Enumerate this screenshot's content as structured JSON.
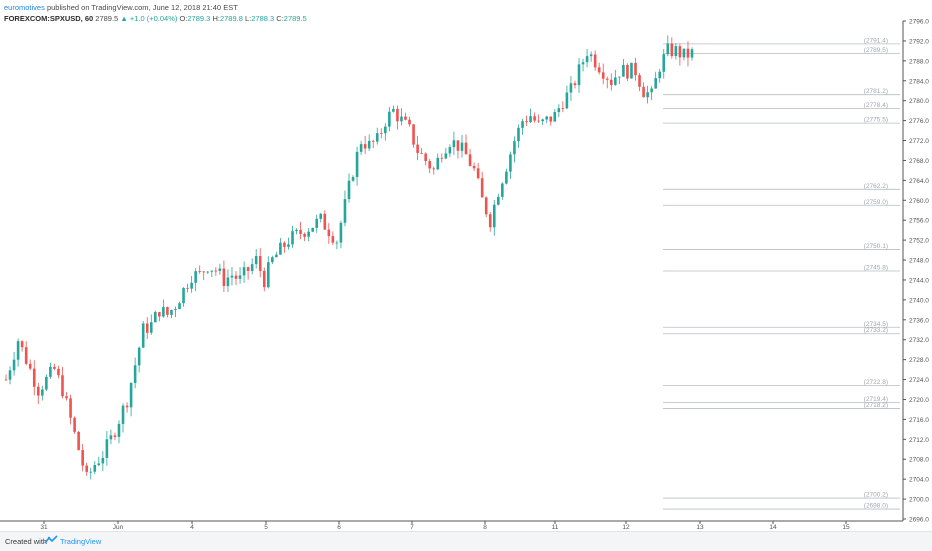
{
  "header": {
    "author": "euromotives",
    "published": "published on TradingView.com, June 12, 2018 21:40 EST",
    "symbol": "FOREXCOM:SPXUSD, 60",
    "last": "2789.5",
    "change": "▲ +1.0 (+0.04%)",
    "o_label": "O:",
    "o_value": "2789.3",
    "h_label": "H:",
    "h_value": "2789.8",
    "l_label": "L:",
    "l_value": "2788.3",
    "c_label": "C:",
    "c_value": "2789.5"
  },
  "footer": {
    "created": "Created with",
    "brand": "TradingView"
  },
  "colors": {
    "up": "#26a69a",
    "down": "#ef5350",
    "grid": "#ffffff",
    "level_line": "#b7bcc4",
    "axis_text": "#555555"
  },
  "chart_data": {
    "type": "candlestick",
    "title": "FOREXCOM:SPXUSD, 60",
    "ylim": [
      2696.0,
      2796.0
    ],
    "y_ticks": [
      "2796.0",
      "2792.0",
      "2788.0",
      "2784.0",
      "2780.0",
      "2776.0",
      "2772.0",
      "2768.0",
      "2764.0",
      "2760.0",
      "2756.0",
      "2752.0",
      "2748.0",
      "2744.0",
      "2740.0",
      "2736.0",
      "2732.0",
      "2728.0",
      "2724.0",
      "2720.0",
      "2716.0",
      "2712.0",
      "2708.0",
      "2704.0",
      "2700.0",
      "2696.0"
    ],
    "x_ticks": [
      "31",
      "Jun",
      "4",
      "5",
      "6",
      "7",
      "8",
      "11",
      "12",
      "13",
      "14",
      "15"
    ],
    "levels": [
      {
        "label": "2791.4",
        "value": 2791.4
      },
      {
        "label": "2789.5",
        "value": 2789.5
      },
      {
        "label": "2781.2",
        "value": 2781.2
      },
      {
        "label": "2778.4",
        "value": 2778.4
      },
      {
        "label": "2775.5",
        "value": 2775.5
      },
      {
        "label": "2762.2",
        "value": 2762.2
      },
      {
        "label": "2759.0",
        "value": 2759.0
      },
      {
        "label": "2750.1",
        "value": 2750.1
      },
      {
        "label": "2745.8",
        "value": 2745.8
      },
      {
        "label": "2734.5",
        "value": 2734.5
      },
      {
        "label": "2733.2",
        "value": 2733.2
      },
      {
        "label": "2722.8",
        "value": 2722.8
      },
      {
        "label": "2719.4",
        "value": 2719.4
      },
      {
        "label": "2718.2",
        "value": 2718.2
      },
      {
        "label": "2700.2",
        "value": 2700.2
      },
      {
        "label": "2698.0",
        "value": 2698.0
      }
    ],
    "close_path": [
      [
        0,
        2724
      ],
      [
        3,
        2732
      ],
      [
        6,
        2726
      ],
      [
        8,
        2722
      ],
      [
        10,
        2724
      ],
      [
        12,
        2726
      ],
      [
        14,
        2722
      ],
      [
        16,
        2716
      ],
      [
        18,
        2710
      ],
      [
        20,
        2704
      ],
      [
        22,
        2707
      ],
      [
        24,
        2709
      ],
      [
        26,
        2712
      ],
      [
        28,
        2716
      ],
      [
        30,
        2720
      ],
      [
        32,
        2727
      ],
      [
        34,
        2734
      ],
      [
        36,
        2735
      ],
      [
        38,
        2738
      ],
      [
        40,
        2737
      ],
      [
        42,
        2739
      ],
      [
        44,
        2742
      ],
      [
        46,
        2745
      ],
      [
        48,
        2745
      ],
      [
        50,
        2747
      ],
      [
        52,
        2746
      ],
      [
        54,
        2744
      ],
      [
        56,
        2745
      ],
      [
        58,
        2744
      ],
      [
        60,
        2746
      ],
      [
        62,
        2748
      ],
      [
        64,
        2744
      ],
      [
        66,
        2748
      ],
      [
        68,
        2750
      ],
      [
        70,
        2752
      ],
      [
        72,
        2753
      ],
      [
        74,
        2754
      ],
      [
        76,
        2755
      ],
      [
        78,
        2756
      ],
      [
        80,
        2754
      ],
      [
        82,
        2752
      ],
      [
        84,
        2759
      ],
      [
        86,
        2766
      ],
      [
        88,
        2772
      ],
      [
        90,
        2771
      ],
      [
        92,
        2772
      ],
      [
        94,
        2776
      ],
      [
        96,
        2778
      ],
      [
        98,
        2776
      ],
      [
        100,
        2774
      ],
      [
        102,
        2770
      ],
      [
        104,
        2768
      ],
      [
        106,
        2766
      ],
      [
        108,
        2770
      ],
      [
        110,
        2772
      ],
      [
        112,
        2771
      ],
      [
        114,
        2769
      ],
      [
        116,
        2766
      ],
      [
        118,
        2760
      ],
      [
        120,
        2756
      ],
      [
        122,
        2762
      ],
      [
        124,
        2767
      ],
      [
        126,
        2772
      ],
      [
        128,
        2776
      ],
      [
        130,
        2777
      ],
      [
        132,
        2775
      ],
      [
        134,
        2776
      ],
      [
        136,
        2777
      ],
      [
        138,
        2780
      ],
      [
        140,
        2782
      ],
      [
        142,
        2786
      ],
      [
        144,
        2790
      ],
      [
        146,
        2788
      ],
      [
        148,
        2786
      ],
      [
        150,
        2784
      ],
      [
        152,
        2786
      ],
      [
        154,
        2786
      ],
      [
        156,
        2786
      ],
      [
        158,
        2782
      ],
      [
        160,
        2781
      ],
      [
        162,
        2787
      ],
      [
        164,
        2790
      ],
      [
        166,
        2790
      ],
      [
        168,
        2789
      ],
      [
        170,
        2789.5
      ]
    ],
    "x_range": [
      0,
      170
    ]
  }
}
